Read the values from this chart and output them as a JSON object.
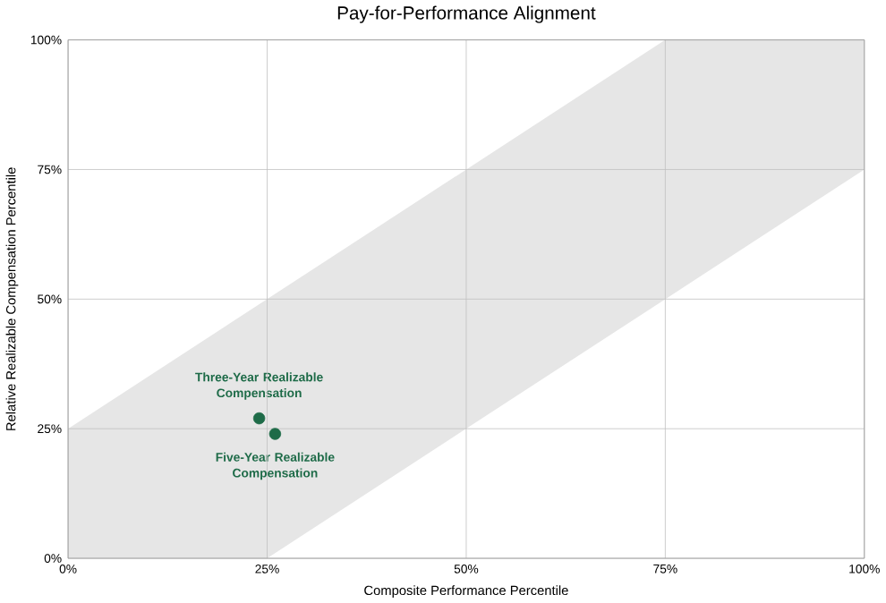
{
  "chart_data": {
    "type": "scatter",
    "title": "Pay-for-Performance Alignment",
    "xlabel": "Composite Performance Percentile",
    "ylabel": "Relative Realizable Compensation Percentile",
    "xlim": [
      0,
      100
    ],
    "ylim": [
      0,
      100
    ],
    "xticks": [
      {
        "value": 0,
        "label": "0%"
      },
      {
        "value": 25,
        "label": "25%"
      },
      {
        "value": 50,
        "label": "50%"
      },
      {
        "value": 75,
        "label": "75%"
      },
      {
        "value": 100,
        "label": "100%"
      }
    ],
    "yticks": [
      {
        "value": 0,
        "label": "0%"
      },
      {
        "value": 25,
        "label": "25%"
      },
      {
        "value": 50,
        "label": "50%"
      },
      {
        "value": 75,
        "label": "75%"
      },
      {
        "value": 100,
        "label": "100%"
      }
    ],
    "grid": true,
    "series": [
      {
        "type": "area",
        "color": "#e6e6e6",
        "x": [
          0,
          75,
          100
        ],
        "values": [
          25,
          100,
          100
        ]
      },
      {
        "type": "area",
        "color": "#ffffff",
        "x": [
          25,
          100
        ],
        "values": [
          0,
          75
        ]
      },
      {
        "color": "#1e6b48",
        "x": [
          24,
          26
        ],
        "values": [
          27,
          24
        ]
      }
    ],
    "annotations": [
      {
        "text": "Three-Year Realizable Compensation",
        "x": 24,
        "y": 27
      },
      {
        "text": "Five-Year Realizable Compensation",
        "x": 26,
        "y": 24
      }
    ]
  }
}
